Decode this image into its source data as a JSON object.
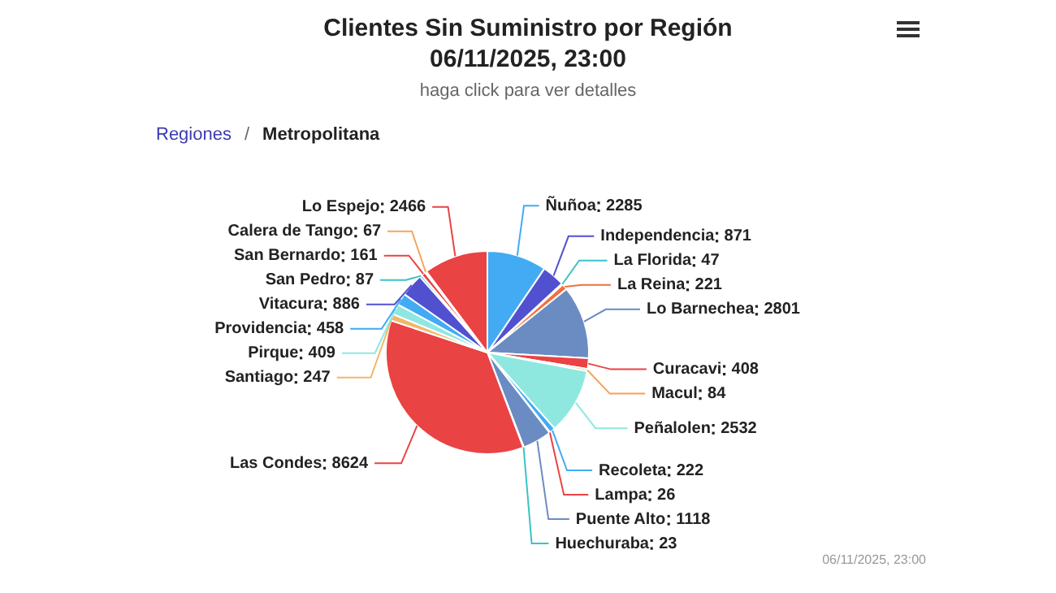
{
  "chart_data": {
    "type": "pie",
    "title": "Clientes Sin Suministro por Región\n06/11/2025, 23:00",
    "subtitle": "haga click para ver detalles",
    "categories": [
      "Ñuñoa",
      "Independencia",
      "La Florida",
      "La Reina",
      "Lo Barnechea",
      "Curacavi",
      "Macul",
      "Peñalolen",
      "Recoleta",
      "Lampa",
      "Puente Alto",
      "Huechuraba",
      "Las Condes",
      "Santiago",
      "Pirque",
      "Providencia",
      "Vitacura",
      "San Pedro",
      "San Bernardo",
      "Calera de Tango",
      "Lo Espejo"
    ],
    "values": [
      2285,
      871,
      47,
      221,
      2801,
      408,
      84,
      2532,
      222,
      26,
      1118,
      23,
      8624,
      247,
      409,
      458,
      886,
      87,
      161,
      67,
      2466
    ],
    "colors": [
      "#42abf3",
      "#5151d0",
      "#39c3c8",
      "#f0703c",
      "#6a8cc2",
      "#e94343",
      "#f5a055",
      "#8ee8e0",
      "#42abf3",
      "#e94343",
      "#6a8cc2",
      "#39c3c8",
      "#e94343",
      "#f3b56a",
      "#8ee8e0",
      "#42abf3",
      "#5151d0",
      "#39c3c8",
      "#e94343",
      "#f3a560",
      "#e94343"
    ],
    "data_labels": true,
    "legend": false,
    "annotations": [
      "Regiones",
      "/",
      "Metropolitana",
      "06/11/2025, 23:00"
    ]
  }
}
